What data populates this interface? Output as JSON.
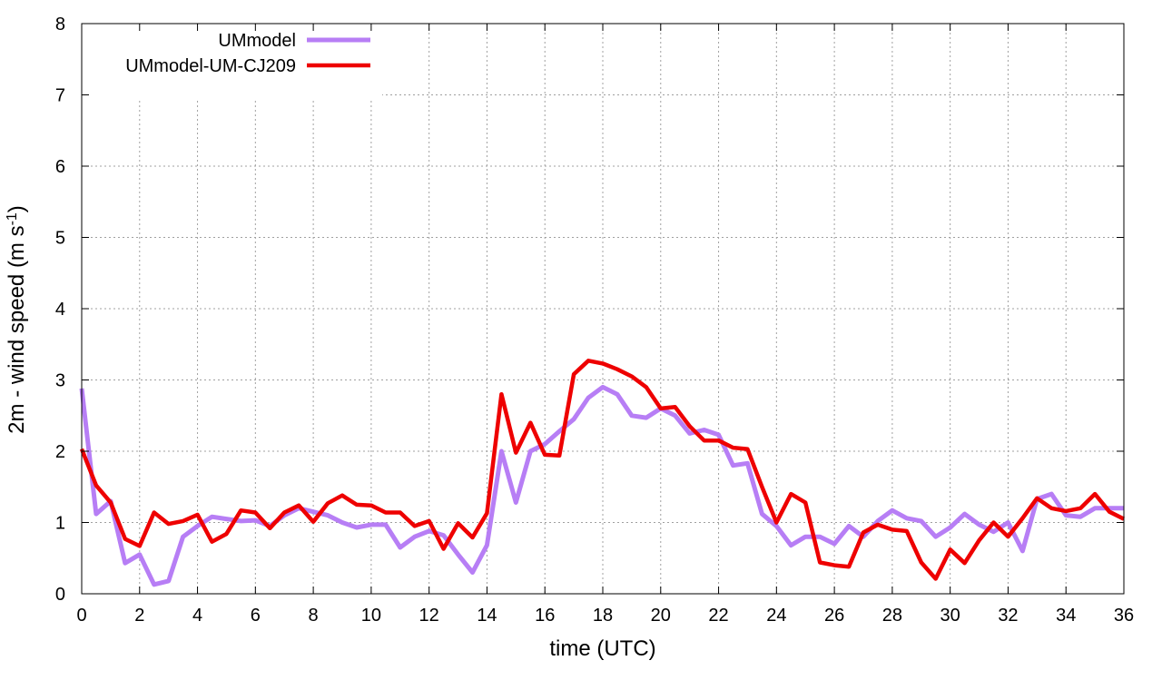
{
  "chart_data": {
    "type": "line",
    "title": "",
    "xlabel": "time (UTC)",
    "ylabel": "2m - wind speed  (m s",
    "ylabel_sup": "-1",
    "ylabel_close": ")",
    "xlim": [
      0,
      36
    ],
    "ylim": [
      0,
      8
    ],
    "xticks": [
      0,
      2,
      4,
      6,
      8,
      10,
      12,
      14,
      16,
      18,
      20,
      22,
      24,
      26,
      28,
      30,
      32,
      34,
      36
    ],
    "yticks": [
      0,
      1,
      2,
      3,
      4,
      5,
      6,
      7,
      8
    ],
    "grid": true,
    "legend_position": "top-left",
    "series": [
      {
        "name": "UMmodel",
        "color": "#b77ef5",
        "x": [
          0,
          0.5,
          1,
          1.5,
          2,
          2.5,
          3,
          3.5,
          4,
          4.5,
          5,
          5.5,
          6,
          6.5,
          7,
          7.5,
          8,
          8.5,
          9,
          9.5,
          10,
          10.5,
          11,
          11.5,
          12,
          12.5,
          13,
          13.5,
          14,
          14.5,
          15,
          15.5,
          16,
          16.5,
          17,
          17.5,
          18,
          18.5,
          19,
          19.5,
          20,
          20.5,
          21,
          21.5,
          22,
          22.5,
          23,
          23.5,
          24,
          24.5,
          25,
          25.5,
          26,
          26.5,
          27,
          27.5,
          28,
          28.5,
          29,
          29.5,
          30,
          30.5,
          31,
          31.5,
          32,
          32.5,
          33,
          33.5,
          34,
          34.5,
          35,
          35.5,
          36
        ],
        "values": [
          2.88,
          1.12,
          1.3,
          0.43,
          0.55,
          0.13,
          0.18,
          0.8,
          0.95,
          1.08,
          1.05,
          1.02,
          1.03,
          0.95,
          1.1,
          1.2,
          1.15,
          1.1,
          1.0,
          0.93,
          0.97,
          0.97,
          0.65,
          0.8,
          0.88,
          0.82,
          0.55,
          0.3,
          0.68,
          2.0,
          1.28,
          2.0,
          2.1,
          2.28,
          2.45,
          2.75,
          2.9,
          2.8,
          2.5,
          2.47,
          2.6,
          2.5,
          2.25,
          2.3,
          2.23,
          1.8,
          1.83,
          1.12,
          0.95,
          0.68,
          0.8,
          0.8,
          0.7,
          0.95,
          0.8,
          1.02,
          1.17,
          1.06,
          1.02,
          0.8,
          0.93,
          1.12,
          0.97,
          0.87,
          1.0,
          0.6,
          1.33,
          1.4,
          1.1,
          1.08,
          1.2,
          1.2,
          1.2
        ]
      },
      {
        "name": "UMmodel-UM-CJ209",
        "color": "#ee0000",
        "x": [
          0,
          0.5,
          1,
          1.5,
          2,
          2.5,
          3,
          3.5,
          4,
          4.5,
          5,
          5.5,
          6,
          6.5,
          7,
          7.5,
          8,
          8.5,
          9,
          9.5,
          10,
          10.5,
          11,
          11.5,
          12,
          12.5,
          13,
          13.5,
          14,
          14.5,
          15,
          15.5,
          16,
          16.5,
          17,
          17.5,
          18,
          18.5,
          19,
          19.5,
          20,
          20.5,
          21,
          21.5,
          22,
          22.5,
          23,
          23.5,
          24,
          24.5,
          25,
          25.5,
          26,
          26.5,
          27,
          27.5,
          28,
          28.5,
          29,
          29.5,
          30,
          30.5,
          31,
          31.5,
          32,
          32.5,
          33,
          33.5,
          34,
          34.5,
          35,
          35.5,
          36
        ],
        "values": [
          2.03,
          1.52,
          1.28,
          0.77,
          0.67,
          1.14,
          0.98,
          1.02,
          1.11,
          0.73,
          0.84,
          1.17,
          1.14,
          0.92,
          1.14,
          1.24,
          1.01,
          1.27,
          1.38,
          1.25,
          1.24,
          1.14,
          1.14,
          0.95,
          1.02,
          0.63,
          0.99,
          0.79,
          1.13,
          2.8,
          1.98,
          2.4,
          1.95,
          1.94,
          3.08,
          3.27,
          3.23,
          3.15,
          3.05,
          2.9,
          2.6,
          2.62,
          2.35,
          2.15,
          2.15,
          2.05,
          2.03,
          1.5,
          1.0,
          1.4,
          1.28,
          0.44,
          0.4,
          0.38,
          0.86,
          0.97,
          0.9,
          0.88,
          0.44,
          0.21,
          0.62,
          0.43,
          0.75,
          1.0,
          0.8,
          1.06,
          1.34,
          1.2,
          1.16,
          1.2,
          1.4,
          1.15,
          1.05
        ]
      }
    ]
  }
}
